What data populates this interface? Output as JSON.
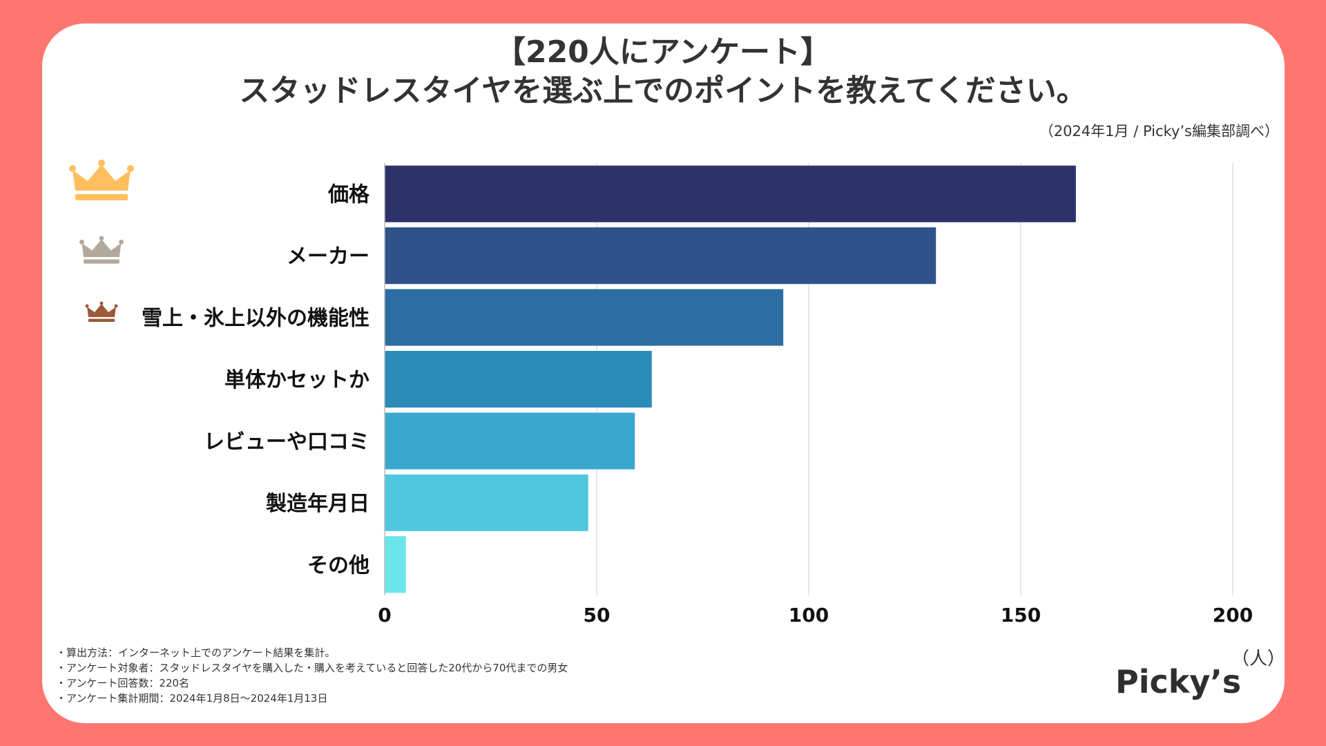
{
  "title_line1": "【220人にアンケート】",
  "title_line2": "スタッドレスタイヤを選ぶ上でのポイントを教えてください。",
  "source": "（2024年1月 / Picky’s編集部調べ）",
  "chart_data": {
    "type": "bar",
    "orientation": "horizontal",
    "categories": [
      "価格",
      "メーカー",
      "雪上・氷上以外の機能性",
      "単体かセットか",
      "レビューや口コミ",
      "製造年月日",
      "その他"
    ],
    "values": [
      163,
      130,
      94,
      63,
      59,
      48,
      5
    ],
    "colors": [
      "#2e326b",
      "#30528b",
      "#2c6ea3",
      "#2b8bbb",
      "#3aa7cf",
      "#4ec7de",
      "#6ae6e8"
    ],
    "xlim": [
      0,
      200
    ],
    "xticks": [
      0,
      50,
      100,
      150,
      200
    ],
    "xlabel": "（人）",
    "grid": "vertical"
  },
  "crowns": [
    {
      "rank": 1,
      "name": "gold-crown-icon",
      "color": "#ffbf5e"
    },
    {
      "rank": 2,
      "name": "silver-crown-icon",
      "color": "#b2a99d"
    },
    {
      "rank": 3,
      "name": "bronze-crown-icon",
      "color": "#9b5a38"
    }
  ],
  "notes": [
    "・算出方法：インターネット上でのアンケート結果を集計。",
    "・アンケート対象者：スタッドレスタイヤを購入した・購入を考えていると回答した20代から70代までの男女",
    "・アンケート回答数：220名",
    "・アンケート集計期間：2024年1月8日〜2024年1月13日"
  ],
  "logo": "Picky’s",
  "colors": {
    "background": "#ff7671",
    "card": "#ffffff"
  }
}
